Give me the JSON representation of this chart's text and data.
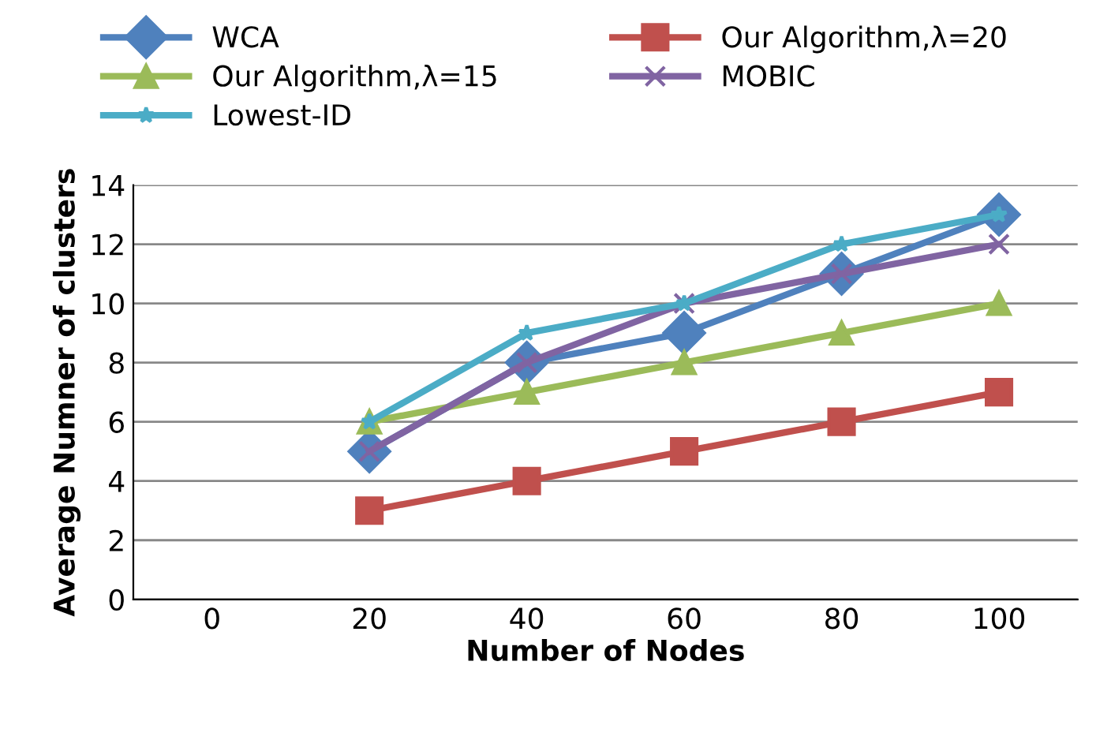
{
  "chart_data": {
    "type": "line",
    "xlabel": "Number of Nodes",
    "ylabel": "Average Numner of clusters",
    "categories": [
      "0",
      "20",
      "40",
      "60",
      "80",
      "100"
    ],
    "series": [
      {
        "name": "WCA",
        "color": "#4f81bd",
        "marker": "diamond",
        "values": [
          null,
          5,
          8,
          9,
          11,
          13
        ]
      },
      {
        "name": "Our Algorithm,λ=20",
        "color": "#c0504d",
        "marker": "square",
        "values": [
          null,
          3,
          4,
          5,
          6,
          7
        ]
      },
      {
        "name": "Our Algorithm,λ=15",
        "color": "#9bbb59",
        "marker": "triangle",
        "values": [
          null,
          6,
          7,
          8,
          9,
          10
        ]
      },
      {
        "name": "MOBIC",
        "color": "#8064a2",
        "marker": "cross",
        "values": [
          null,
          5,
          8,
          10,
          11,
          12
        ]
      },
      {
        "name": "Lowest-ID",
        "color": "#4bacc6",
        "marker": "star",
        "values": [
          null,
          6,
          9,
          10,
          12,
          13
        ]
      }
    ],
    "ylim": [
      0,
      14
    ],
    "yticks": [
      0,
      2,
      4,
      6,
      8,
      10,
      12,
      14
    ],
    "grid": "y",
    "legend": "top"
  }
}
